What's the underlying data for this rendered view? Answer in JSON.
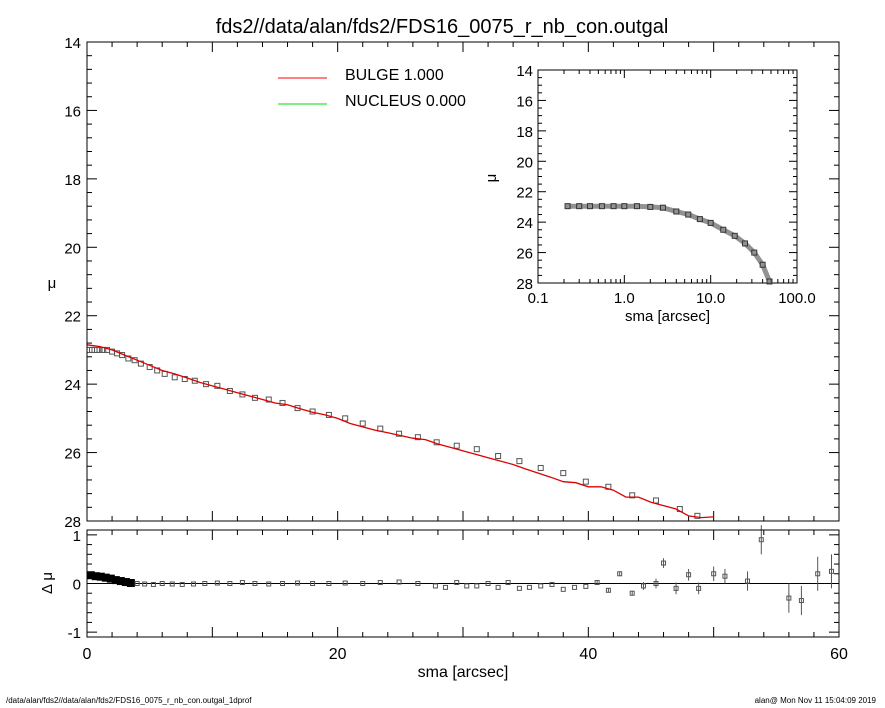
{
  "title": "fds2//data/alan/fds2/FDS16_0075_r_nb_con.outgal",
  "footer_left": "/data/alan/fds2//data/alan/fds2/FDS16_0075_r_nb_con.outgal_1dprof",
  "footer_right": "alan@  Mon Nov 11 15:04:09 2019",
  "legend": [
    {
      "label": "BULGE  1.000",
      "color": "#ff0000"
    },
    {
      "label": "NUCLEUS  0.000",
      "color": "#00dd00"
    }
  ],
  "chart_data": [
    {
      "id": "main",
      "type": "scatter",
      "xlabel": "sma [arcsec]",
      "ylabel": "μ",
      "xlim": [
        0,
        60
      ],
      "ylim": [
        28,
        14
      ],
      "y_inverted": true,
      "x_ticks": [
        "0",
        "20",
        "40",
        "60"
      ],
      "y_ticks": [
        "14",
        "16",
        "18",
        "20",
        "22",
        "24",
        "26",
        "28"
      ],
      "data_color": "#555555",
      "model_color": "#dd0000",
      "data_points": [
        [
          0.2,
          23.0
        ],
        [
          0.4,
          23.0
        ],
        [
          0.6,
          23.0
        ],
        [
          0.8,
          23.0
        ],
        [
          1.0,
          23.0
        ],
        [
          1.3,
          23.0
        ],
        [
          1.6,
          23.0
        ],
        [
          2.0,
          23.05
        ],
        [
          2.4,
          23.1
        ],
        [
          2.8,
          23.15
        ],
        [
          3.3,
          23.25
        ],
        [
          3.8,
          23.3
        ],
        [
          4.3,
          23.4
        ],
        [
          5.0,
          23.5
        ],
        [
          5.6,
          23.6
        ],
        [
          6.2,
          23.7
        ],
        [
          7.0,
          23.8
        ],
        [
          7.8,
          23.85
        ],
        [
          8.6,
          23.9
        ],
        [
          9.5,
          24.0
        ],
        [
          10.4,
          24.05
        ],
        [
          11.4,
          24.2
        ],
        [
          12.4,
          24.3
        ],
        [
          13.4,
          24.4
        ],
        [
          14.5,
          24.45
        ],
        [
          15.6,
          24.55
        ],
        [
          16.8,
          24.7
        ],
        [
          18.0,
          24.8
        ],
        [
          19.3,
          24.9
        ],
        [
          20.6,
          25.0
        ],
        [
          22.0,
          25.15
        ],
        [
          23.4,
          25.3
        ],
        [
          24.9,
          25.45
        ],
        [
          26.4,
          25.55
        ],
        [
          27.9,
          25.7
        ],
        [
          29.5,
          25.8
        ],
        [
          31.1,
          25.9
        ],
        [
          32.8,
          26.1
        ],
        [
          34.5,
          26.25
        ],
        [
          36.2,
          26.45
        ],
        [
          38.0,
          26.6
        ],
        [
          39.8,
          26.85
        ],
        [
          41.6,
          27.0
        ],
        [
          43.5,
          27.25
        ],
        [
          45.4,
          27.4
        ],
        [
          47.3,
          27.65
        ],
        [
          48.7,
          27.85
        ]
      ],
      "model_points": [
        [
          0.0,
          22.85
        ],
        [
          1.0,
          22.9
        ],
        [
          2.0,
          23.0
        ],
        [
          3.0,
          23.15
        ],
        [
          4.0,
          23.3
        ],
        [
          5.0,
          23.45
        ],
        [
          6.0,
          23.6
        ],
        [
          7.0,
          23.7
        ],
        [
          8.0,
          23.82
        ],
        [
          9.0,
          23.95
        ],
        [
          10.0,
          24.05
        ],
        [
          11.0,
          24.15
        ],
        [
          12.0,
          24.25
        ],
        [
          13.0,
          24.35
        ],
        [
          14.0,
          24.45
        ],
        [
          15.0,
          24.55
        ],
        [
          16.0,
          24.6
        ],
        [
          17.0,
          24.72
        ],
        [
          18.0,
          24.82
        ],
        [
          19.0,
          24.9
        ],
        [
          20.0,
          25.0
        ],
        [
          21.0,
          25.15
        ],
        [
          22.0,
          25.25
        ],
        [
          23.0,
          25.35
        ],
        [
          24.0,
          25.42
        ],
        [
          25.0,
          25.5
        ],
        [
          26.0,
          25.58
        ],
        [
          27.0,
          25.62
        ],
        [
          28.0,
          25.75
        ],
        [
          29.0,
          25.85
        ],
        [
          30.0,
          25.95
        ],
        [
          31.0,
          26.05
        ],
        [
          32.0,
          26.15
        ],
        [
          33.0,
          26.25
        ],
        [
          34.0,
          26.35
        ],
        [
          35.0,
          26.48
        ],
        [
          36.0,
          26.6
        ],
        [
          37.0,
          26.72
        ],
        [
          38.0,
          26.85
        ],
        [
          39.0,
          26.88
        ],
        [
          40.0,
          27.0
        ],
        [
          41.0,
          27.0
        ],
        [
          42.0,
          27.1
        ],
        [
          43.0,
          27.3
        ],
        [
          44.0,
          27.3
        ],
        [
          45.0,
          27.45
        ],
        [
          46.0,
          27.55
        ],
        [
          47.0,
          27.65
        ],
        [
          48.0,
          27.85
        ],
        [
          49.0,
          27.9
        ],
        [
          50.0,
          27.88
        ]
      ]
    },
    {
      "id": "inset",
      "type": "scatter",
      "xlabel": "sma [arcsec]",
      "ylabel": "μ",
      "x_log": true,
      "xlim": [
        0.1,
        100
      ],
      "ylim": [
        28,
        14
      ],
      "y_inverted": true,
      "x_ticks": [
        "0.1",
        "1.0",
        "10.0",
        "100.0"
      ],
      "y_ticks": [
        "14",
        "16",
        "18",
        "20",
        "22",
        "24",
        "26",
        "28"
      ],
      "data_points": [
        [
          0.22,
          22.95
        ],
        [
          0.3,
          22.95
        ],
        [
          0.4,
          22.95
        ],
        [
          0.55,
          22.95
        ],
        [
          0.75,
          22.95
        ],
        [
          1.0,
          22.95
        ],
        [
          1.4,
          22.95
        ],
        [
          2.0,
          23.0
        ],
        [
          2.8,
          23.05
        ],
        [
          4.0,
          23.3
        ],
        [
          5.5,
          23.5
        ],
        [
          7.5,
          23.8
        ],
        [
          10.0,
          24.05
        ],
        [
          14.0,
          24.5
        ],
        [
          19.0,
          24.9
        ],
        [
          25.0,
          25.4
        ],
        [
          32.0,
          26.0
        ],
        [
          40.0,
          26.8
        ],
        [
          48.0,
          27.9
        ]
      ]
    },
    {
      "id": "residual",
      "type": "scatter",
      "xlabel": "sma [arcsec]",
      "ylabel": "Δ μ",
      "xlim": [
        0,
        60
      ],
      "ylim": [
        -1.1,
        1.1
      ],
      "x_ticks": [
        "0",
        "20",
        "40",
        "60"
      ],
      "y_ticks": [
        "1",
        "0",
        "-1"
      ],
      "zero_line": true,
      "points": [
        [
          0.3,
          0.17,
          0.0
        ],
        [
          0.7,
          0.15,
          0.0
        ],
        [
          1.1,
          0.14,
          0.0
        ],
        [
          1.5,
          0.12,
          0.0
        ],
        [
          1.9,
          0.1,
          0.0
        ],
        [
          2.3,
          0.07,
          0.0
        ],
        [
          2.7,
          0.05,
          0.0
        ],
        [
          3.1,
          0.03,
          0.0
        ],
        [
          3.5,
          0.01,
          0.0
        ],
        [
          4.0,
          0.0,
          0.0
        ],
        [
          4.6,
          -0.01,
          0.0
        ],
        [
          5.3,
          -0.02,
          0.0
        ],
        [
          6.0,
          0.0,
          0.0
        ],
        [
          6.8,
          -0.01,
          0.0
        ],
        [
          7.6,
          -0.02,
          0.0
        ],
        [
          8.5,
          -0.01,
          0.0
        ],
        [
          9.4,
          0.0,
          0.0
        ],
        [
          10.4,
          0.01,
          0.0
        ],
        [
          11.4,
          0.0,
          0.0
        ],
        [
          12.4,
          0.02,
          0.0
        ],
        [
          13.4,
          0.0,
          0.0
        ],
        [
          14.5,
          -0.01,
          0.0
        ],
        [
          15.6,
          0.0,
          0.0
        ],
        [
          16.8,
          0.01,
          0.0
        ],
        [
          18.0,
          0.0,
          0.0
        ],
        [
          19.3,
          0.0,
          0.0
        ],
        [
          20.6,
          0.01,
          0.0
        ],
        [
          22.0,
          0.0,
          0.0
        ],
        [
          23.4,
          0.02,
          0.0
        ],
        [
          24.9,
          0.03,
          0.0
        ],
        [
          26.4,
          0.0,
          0.0
        ],
        [
          27.8,
          -0.05,
          0.0
        ],
        [
          28.6,
          -0.08,
          0.0
        ],
        [
          29.5,
          0.02,
          0.0
        ],
        [
          30.3,
          -0.05,
          0.0
        ],
        [
          31.1,
          -0.05,
          0.0
        ],
        [
          32.0,
          0.0,
          0.0
        ],
        [
          32.8,
          -0.08,
          0.0
        ],
        [
          33.6,
          0.02,
          0.0
        ],
        [
          34.5,
          -0.1,
          0.0
        ],
        [
          35.3,
          -0.08,
          0.0
        ],
        [
          36.2,
          -0.05,
          0.0
        ],
        [
          37.1,
          -0.02,
          0.0
        ],
        [
          38.0,
          -0.12,
          0.0
        ],
        [
          38.9,
          -0.08,
          0.0
        ],
        [
          39.8,
          -0.06,
          0.0
        ],
        [
          40.7,
          0.02,
          0.03
        ],
        [
          41.6,
          -0.14,
          0.04
        ],
        [
          42.5,
          0.2,
          0.05
        ],
        [
          43.5,
          -0.2,
          0.05
        ],
        [
          44.4,
          -0.05,
          0.08
        ],
        [
          45.4,
          0.0,
          0.1
        ],
        [
          46.0,
          0.42,
          0.1
        ],
        [
          47.0,
          -0.1,
          0.12
        ],
        [
          48.0,
          0.18,
          0.12
        ],
        [
          48.8,
          -0.1,
          0.12
        ],
        [
          50.0,
          0.2,
          0.15
        ],
        [
          50.9,
          0.15,
          0.15
        ],
        [
          52.7,
          0.05,
          0.2
        ],
        [
          53.8,
          0.9,
          0.3
        ],
        [
          56.0,
          -0.3,
          0.3
        ],
        [
          57.0,
          -0.35,
          0.3
        ],
        [
          58.3,
          0.2,
          0.35
        ],
        [
          59.4,
          0.25,
          0.35
        ]
      ]
    }
  ]
}
